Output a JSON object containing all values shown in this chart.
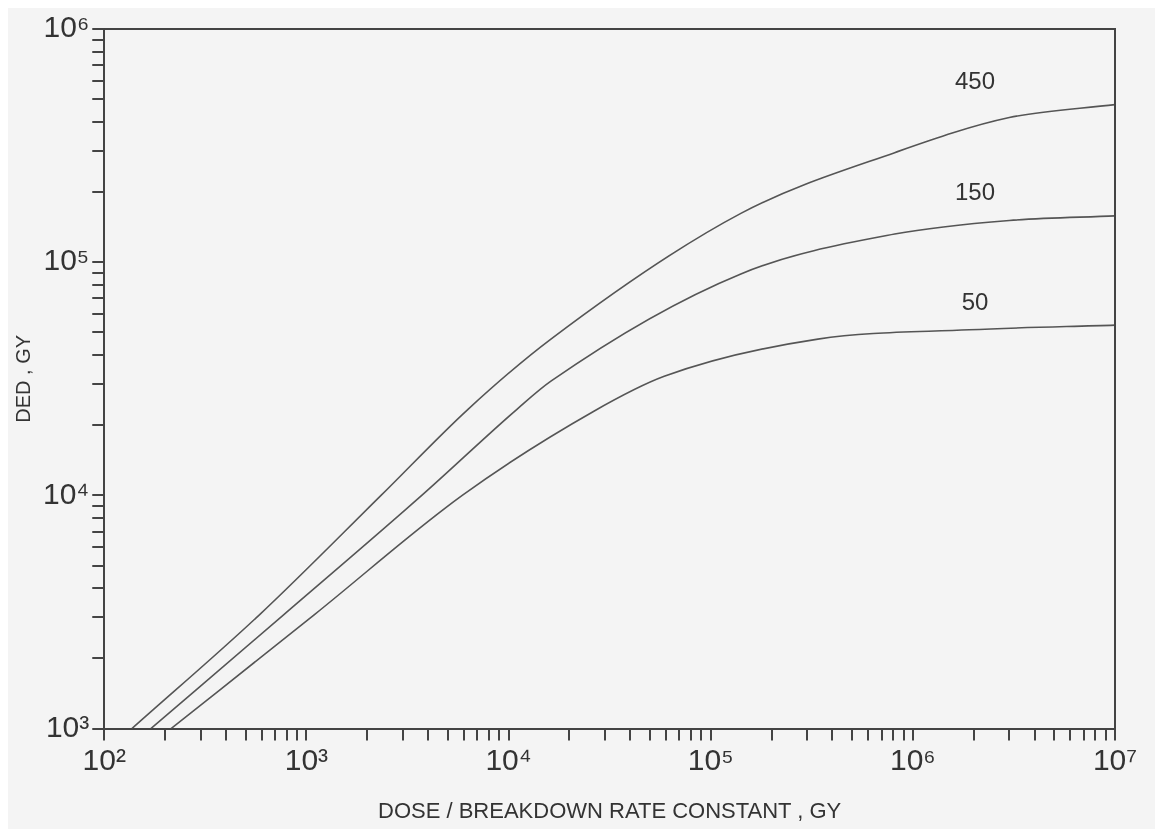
{
  "chart_data": {
    "type": "line",
    "xlabel": "DOSE / BREAKDOWN RATE CONSTANT , GY",
    "ylabel": "DED , GY",
    "log": "xy",
    "grid": false,
    "legend": false,
    "marker": "none",
    "line_style": "solid",
    "xlim": [
      100,
      10000000
    ],
    "ylim": [
      1000,
      1000000
    ],
    "xticks": [
      {
        "value": 100,
        "label": "10²"
      },
      {
        "value": 200,
        "label": null
      },
      {
        "value": 300,
        "label": null
      },
      {
        "value": 400,
        "label": null
      },
      {
        "value": 500,
        "label": null
      },
      {
        "value": 600,
        "label": null
      },
      {
        "value": 700,
        "label": null
      },
      {
        "value": 800,
        "label": null
      },
      {
        "value": 900,
        "label": null
      },
      {
        "value": 1000,
        "label": "10³"
      },
      {
        "value": 2000,
        "label": null
      },
      {
        "value": 3000,
        "label": null
      },
      {
        "value": 4000,
        "label": null
      },
      {
        "value": 5000,
        "label": null
      },
      {
        "value": 6000,
        "label": null
      },
      {
        "value": 7000,
        "label": null
      },
      {
        "value": 8000,
        "label": null
      },
      {
        "value": 9000,
        "label": null
      },
      {
        "value": 10000,
        "label": "10⁴"
      },
      {
        "value": 20000,
        "label": null
      },
      {
        "value": 30000,
        "label": null
      },
      {
        "value": 40000,
        "label": null
      },
      {
        "value": 50000,
        "label": null
      },
      {
        "value": 60000,
        "label": null
      },
      {
        "value": 70000,
        "label": null
      },
      {
        "value": 80000,
        "label": null
      },
      {
        "value": 90000,
        "label": null
      },
      {
        "value": 100000,
        "label": "10⁵"
      },
      {
        "value": 200000,
        "label": null
      },
      {
        "value": 300000,
        "label": null
      },
      {
        "value": 400000,
        "label": null
      },
      {
        "value": 500000,
        "label": null
      },
      {
        "value": 600000,
        "label": null
      },
      {
        "value": 700000,
        "label": null
      },
      {
        "value": 800000,
        "label": null
      },
      {
        "value": 900000,
        "label": null
      },
      {
        "value": 1000000,
        "label": "10⁶"
      },
      {
        "value": 2000000,
        "label": null
      },
      {
        "value": 3000000,
        "label": null
      },
      {
        "value": 4000000,
        "label": null
      },
      {
        "value": 5000000,
        "label": null
      },
      {
        "value": 6000000,
        "label": null
      },
      {
        "value": 7000000,
        "label": null
      },
      {
        "value": 8000000,
        "label": null
      },
      {
        "value": 9000000,
        "label": null
      },
      {
        "value": 10000000,
        "label": "10⁷"
      }
    ],
    "yticks": [
      {
        "value": 1000,
        "label": "10³"
      },
      {
        "value": 2000,
        "label": null
      },
      {
        "value": 3000,
        "label": null
      },
      {
        "value": 4000,
        "label": null
      },
      {
        "value": 5000,
        "label": null
      },
      {
        "value": 6000,
        "label": null
      },
      {
        "value": 7000,
        "label": null
      },
      {
        "value": 8000,
        "label": null
      },
      {
        "value": 9000,
        "label": null
      },
      {
        "value": 10000,
        "label": "10⁴"
      },
      {
        "value": 20000,
        "label": null
      },
      {
        "value": 30000,
        "label": null
      },
      {
        "value": 40000,
        "label": null
      },
      {
        "value": 50000,
        "label": null
      },
      {
        "value": 60000,
        "label": null
      },
      {
        "value": 70000,
        "label": null
      },
      {
        "value": 80000,
        "label": null
      },
      {
        "value": 90000,
        "label": null
      },
      {
        "value": 100000,
        "label": "10⁵"
      },
      {
        "value": 200000,
        "label": null
      },
      {
        "value": 300000,
        "label": null
      },
      {
        "value": 400000,
        "label": null
      },
      {
        "value": 500000,
        "label": null
      },
      {
        "value": 600000,
        "label": null
      },
      {
        "value": 700000,
        "label": null
      },
      {
        "value": 800000,
        "label": null
      },
      {
        "value": 900000,
        "label": null
      },
      {
        "value": 1000000,
        "label": "10⁶"
      }
    ],
    "series": [
      {
        "name": "450",
        "color": "#555555",
        "x": [
          137,
          589,
          2340,
          6300,
          16200,
          141000,
          813000,
          3000000,
          10000000
        ],
        "values": [
          1000,
          3090,
          10000,
          23400,
          46800,
          162000,
          295000,
          417000,
          474000
        ]
      },
      {
        "name": "150",
        "color": "#555555",
        "x": [
          170,
          776,
          3720,
          11000,
          16200,
          141000,
          813000,
          3000000,
          10000000
        ],
        "values": [
          1000,
          3090,
          10000,
          23400,
          30900,
          89100,
          132000,
          151000,
          158000
        ]
      },
      {
        "name": "50",
        "color": "#555555",
        "x": [
          214,
          1100,
          5900,
          26300,
          58900,
          339000,
          1900000,
          10000000
        ],
        "values": [
          1000,
          3090,
          10000,
          22900,
          32400,
          46800,
          51300,
          53700
        ]
      }
    ]
  }
}
